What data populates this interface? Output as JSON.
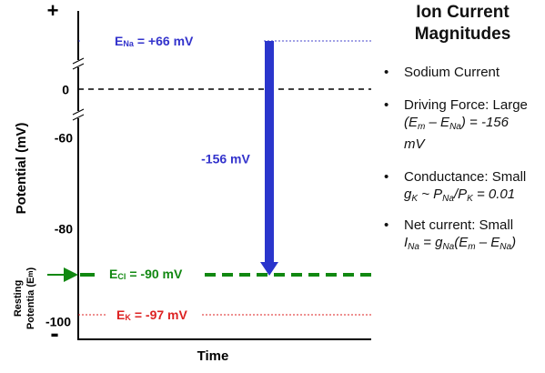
{
  "axis": {
    "top_sign": "+",
    "bottom_sign": "-",
    "y_label": "Potential (mV)",
    "x_label": "Time",
    "ticks": [
      "0",
      "-60",
      "-80",
      "-100"
    ],
    "resting": {
      "line1": "Resting",
      "line2": "Potentia (E",
      "sub": "m",
      "close": ")"
    }
  },
  "lines": {
    "e_na": {
      "e": "E",
      "sub": "Na",
      "value": "= +66 mV"
    },
    "e_cl": {
      "e": "E",
      "sub": "Cl",
      "value": "= -90 mV"
    },
    "e_k": {
      "e": "E",
      "sub": "K",
      "value": "= -97 mV"
    },
    "arrow_label": "-156 mV"
  },
  "panel": {
    "title_line1": "Ion Current",
    "title_line2": "Magnitudes",
    "bullets": {
      "sodium": "Sodium Current",
      "driving": {
        "label": "Driving Force: Large",
        "parts": [
          "(",
          "E",
          "m",
          "–",
          "E",
          "Na",
          ")",
          "= -156",
          "mV"
        ]
      },
      "conductance": {
        "label": "Conductance: Small",
        "parts": [
          "g",
          "K",
          "~",
          "P",
          "Na",
          "/P",
          "K",
          "= 0.01"
        ]
      },
      "net": {
        "label": "Net current: Small",
        "parts": [
          "I",
          "Na",
          "=",
          "g",
          "Na",
          "(E",
          "m",
          "–",
          "E",
          "Na",
          ")"
        ]
      }
    }
  }
}
